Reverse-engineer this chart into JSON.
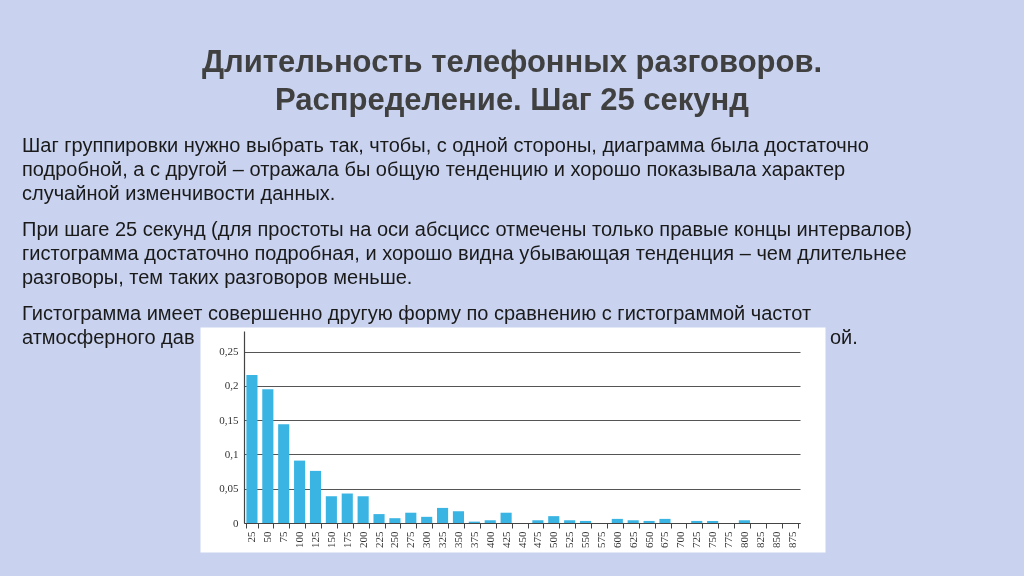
{
  "chart_data": {
    "type": "bar",
    "title": "Длительность телефонных разговоров.\nРаспределение. Шаг 25 секунд",
    "annotations": [
      "Шаг группировки нужно выбрать так, чтобы, с одной стороны, диаграмма была достаточно\nподробной, а с другой – отражала бы общую тенденцию и хорошо показывала характер\nслучайной изменчивости данных.",
      "При шаге 25 секунд (для простоты на оси абсцисс отмечены только правые концы интервалов)\nгистограмма достаточно подробная, и хорошо видна убывающая тенденция – чем длительнее\nразговоры, тем таких разговоров меньше.",
      "Гистограмма имеет совершенно другую форму по сравнению с гистограммой частот\nатмосферного дав",
      "ой."
    ],
    "categories": [
      "25",
      "50",
      "75",
      "100",
      "125",
      "150",
      "175",
      "200",
      "225",
      "250",
      "275",
      "300",
      "325",
      "350",
      "375",
      "400",
      "425",
      "450",
      "475",
      "500",
      "525",
      "550",
      "575",
      "600",
      "625",
      "650",
      "675",
      "700",
      "725",
      "750",
      "775",
      "800",
      "825",
      "850",
      "875"
    ],
    "values": [
      0.216,
      0.195,
      0.144,
      0.091,
      0.076,
      0.039,
      0.043,
      0.039,
      0.013,
      0.007,
      0.015,
      0.009,
      0.022,
      0.017,
      0.002,
      0.004,
      0.015,
      0,
      0.004,
      0.01,
      0.004,
      0.003,
      0,
      0.006,
      0.004,
      0.003,
      0.006,
      0,
      0.003,
      0.003,
      0,
      0.004,
      0,
      0,
      0
    ],
    "color": "#3ab5e3",
    "ylim": [
      0,
      0.28
    ],
    "yticks": [
      0,
      {
        "value": 0.05,
        "label": "0,05"
      },
      {
        "value": 0.1,
        "label": "0,1"
      },
      {
        "value": 0.15,
        "label": "0,15"
      },
      {
        "value": 0.2,
        "label": "0,2"
      },
      {
        "value": 0.25,
        "label": "0,25"
      }
    ],
    "grid": "y"
  }
}
